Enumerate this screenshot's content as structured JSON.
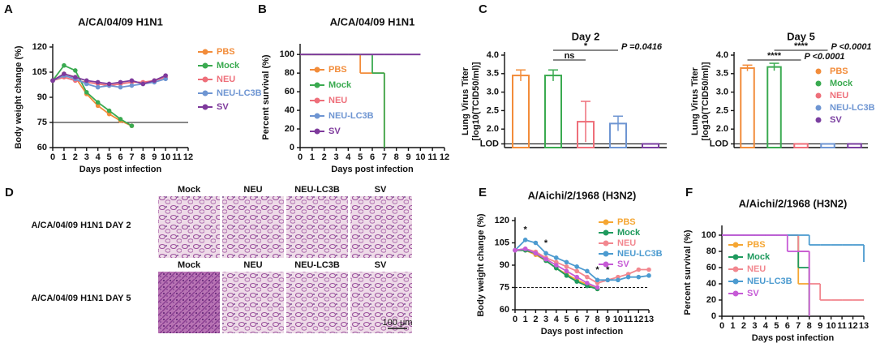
{
  "chart_data": [
    {
      "type": "line",
      "panel": "A",
      "title": "A/CA/04/09 H1N1",
      "xlabel": "Days post infection",
      "ylabel": "Body weight change (%)",
      "x": [
        0,
        1,
        2,
        3,
        4,
        5,
        6,
        7,
        8,
        9,
        10
      ],
      "xlim": [
        0,
        12
      ],
      "xticks": [
        0,
        1,
        2,
        3,
        4,
        5,
        6,
        7,
        8,
        9,
        10,
        11,
        12
      ],
      "ylim": [
        60,
        120
      ],
      "yticks": [
        60,
        75,
        90,
        105,
        120
      ],
      "hline": 75,
      "legend": "right",
      "series": [
        {
          "name": "PBS",
          "color": "#f28c3a",
          "values": [
            100,
            104,
            102,
            92,
            85,
            80,
            76,
            73,
            null,
            null,
            null
          ]
        },
        {
          "name": "Mock",
          "color": "#3aaa50",
          "values": [
            100,
            109,
            106,
            93,
            87,
            82,
            77,
            73,
            null,
            null,
            null
          ]
        },
        {
          "name": "NEU",
          "color": "#ee6f7a",
          "values": [
            100,
            102,
            100,
            99,
            98,
            97,
            98,
            99,
            99,
            100,
            102
          ]
        },
        {
          "name": "NEU-LC3B",
          "color": "#6e95d2",
          "values": [
            100,
            103,
            101,
            98,
            96,
            97,
            96,
            97,
            98,
            99,
            101
          ]
        },
        {
          "name": "SV",
          "color": "#7e3a9c",
          "values": [
            100,
            104,
            102,
            100,
            99,
            98,
            99,
            100,
            98,
            100,
            103
          ]
        }
      ]
    },
    {
      "type": "step",
      "panel": "B",
      "title": "A/CA/04/09 H1N1",
      "xlabel": "Days post infection",
      "ylabel": "Percent survival (%)",
      "x": [
        0,
        1,
        2,
        3,
        4,
        5,
        6,
        7,
        8,
        9,
        10
      ],
      "xlim": [
        0,
        12
      ],
      "xticks": [
        0,
        1,
        2,
        3,
        4,
        5,
        6,
        7,
        8,
        9,
        10,
        11,
        12
      ],
      "ylim": [
        0,
        108
      ],
      "yticks": [
        0,
        20,
        40,
        60,
        80,
        100
      ],
      "legend": "upper left",
      "series": [
        {
          "name": "PBS",
          "color": "#f28c3a",
          "values": [
            100,
            100,
            100,
            100,
            100,
            80,
            80,
            0,
            null,
            null,
            null
          ]
        },
        {
          "name": "Mock",
          "color": "#3aaa50",
          "values": [
            100,
            100,
            100,
            100,
            100,
            100,
            80,
            0,
            null,
            null,
            null
          ]
        },
        {
          "name": "NEU",
          "color": "#ee6f7a",
          "values": [
            100,
            100,
            100,
            100,
            100,
            100,
            100,
            100,
            100,
            100,
            100
          ]
        },
        {
          "name": "NEU-LC3B",
          "color": "#6e95d2",
          "values": [
            100,
            100,
            100,
            100,
            100,
            100,
            100,
            100,
            100,
            100,
            100
          ]
        },
        {
          "name": "SV",
          "color": "#7e3a9c",
          "values": [
            100,
            100,
            100,
            100,
            100,
            100,
            100,
            100,
            100,
            100,
            100
          ]
        }
      ]
    },
    {
      "type": "bar",
      "panel": "C",
      "title": "Day 2",
      "ylabel": [
        "Lung Virus Titer",
        "[log10(TCID50/ml)]"
      ],
      "colors": [
        "#f28c3a",
        "#3aaa50",
        "#ee6f7a",
        "#6e95d2",
        "#7a3fa0"
      ],
      "values": [
        3.45,
        3.45,
        2.2,
        2.15,
        1.6
      ],
      "errors": [
        0.15,
        0.15,
        0.55,
        0.2,
        0
      ],
      "ylim": [
        1.5,
        4.0
      ],
      "yticks": [
        {
          "value": 1.6,
          "label": "LOD"
        },
        {
          "value": 2.0,
          "label": "2.0"
        },
        {
          "value": 2.5,
          "label": "2.5"
        },
        {
          "value": 3.0,
          "label": "3.0"
        },
        {
          "value": 3.5,
          "label": "3.5"
        },
        {
          "value": 4.0,
          "label": "4.0"
        }
      ],
      "annotations": [
        {
          "text": "*",
          "label": "P =0.0416",
          "from": 1,
          "to": 3
        },
        {
          "text": "ns",
          "from": 1,
          "to": 2
        }
      ]
    },
    {
      "type": "bar",
      "title": "Day 5",
      "ylabel": [
        "Lung Virus Titer",
        "[log10(TCID50/ml)]"
      ],
      "categories": [
        "PBS",
        "Mock",
        "NEU",
        "NEU-LC3B",
        "SV"
      ],
      "legend": "upper right",
      "colors": [
        "#f28c3a",
        "#3aaa50",
        "#ee6f7a",
        "#6e95d2",
        "#7a3fa0"
      ],
      "values": [
        3.65,
        3.68,
        1.6,
        1.6,
        1.6
      ],
      "errors": [
        0.08,
        0.1,
        0,
        0,
        0
      ],
      "ylim": [
        1.5,
        4.0
      ],
      "yticks": [
        {
          "value": 1.6,
          "label": "LOD"
        },
        {
          "value": 2.0,
          "label": "2.0"
        },
        {
          "value": 2.5,
          "label": "2.5"
        },
        {
          "value": 3.0,
          "label": "3.0"
        },
        {
          "value": 3.5,
          "label": "3.5"
        },
        {
          "value": 4.0,
          "label": "4.0"
        }
      ],
      "annotations": [
        {
          "text": "****",
          "label": "P <0.0001",
          "from": 1,
          "to": 3
        },
        {
          "text": "****",
          "label": "P <0.0001",
          "from": 0,
          "to": 2
        }
      ]
    },
    {
      "type": "line",
      "panel": "E",
      "title": "A/Aichi/2/1968 (H3N2)",
      "xlabel": "Days post infection",
      "ylabel": "Body weight change (%)",
      "x": [
        0,
        1,
        2,
        3,
        4,
        5,
        6,
        7,
        8,
        9,
        10,
        11,
        12,
        13
      ],
      "xlim": [
        0,
        13
      ],
      "xticks": [
        0,
        1,
        2,
        3,
        4,
        5,
        6,
        7,
        8,
        9,
        10,
        11,
        12,
        13
      ],
      "ylim": [
        60,
        120
      ],
      "yticks": [
        60,
        75,
        90,
        105,
        120
      ],
      "hline": 75,
      "hline_style": "dashed",
      "legend": "upper right",
      "annotations": [
        {
          "text": "*",
          "x": 1
        },
        {
          "text": "*",
          "x": 3
        },
        {
          "text": "*",
          "x": 8
        },
        {
          "text": "*",
          "x": 9
        }
      ],
      "series": [
        {
          "name": "PBS",
          "color": "#f5a633",
          "values": [
            100,
            100,
            97,
            93,
            88,
            84,
            80,
            77,
            74,
            null,
            null,
            null,
            null,
            null
          ]
        },
        {
          "name": "Mock",
          "color": "#1f9a5e",
          "values": [
            100,
            100,
            98,
            93,
            88,
            83,
            79,
            76,
            74,
            null,
            null,
            null,
            null,
            null
          ]
        },
        {
          "name": "NEU",
          "color": "#f2878f",
          "values": [
            100,
            101,
            99,
            95,
            92,
            89,
            86,
            82,
            78,
            80,
            82,
            84,
            87,
            87
          ]
        },
        {
          "name": "NEU-LC3B",
          "color": "#4c9bd0",
          "values": [
            100,
            107,
            105,
            98,
            95,
            92,
            89,
            86,
            80,
            80,
            80,
            82,
            82,
            83
          ]
        },
        {
          "name": "SV",
          "color": "#c65ad6",
          "values": [
            100,
            101,
            98,
            94,
            90,
            86,
            82,
            78,
            75,
            null,
            null,
            null,
            null,
            null
          ]
        }
      ]
    },
    {
      "type": "step",
      "panel": "F",
      "title": "A/Aichi/2/1968 (H3N2)",
      "xlabel": "Days post infection",
      "ylabel": "Percent survival (%)",
      "x": [
        0,
        1,
        2,
        3,
        4,
        5,
        6,
        7,
        8,
        9,
        10,
        11,
        12,
        13
      ],
      "xlim": [
        0,
        13
      ],
      "xticks": [
        0,
        1,
        2,
        3,
        4,
        5,
        6,
        7,
        8,
        9,
        10,
        11,
        12,
        13
      ],
      "ylim": [
        0,
        108
      ],
      "yticks": [
        0,
        20,
        40,
        60,
        80,
        100
      ],
      "legend": "lower left",
      "series": [
        {
          "name": "PBS",
          "color": "#f5a633",
          "values": [
            100,
            100,
            100,
            100,
            100,
            100,
            100,
            40,
            0,
            null,
            null,
            null,
            null,
            null
          ]
        },
        {
          "name": "Mock",
          "color": "#1f9a5e",
          "values": [
            100,
            100,
            100,
            100,
            100,
            100,
            100,
            60,
            0,
            null,
            null,
            null,
            null,
            null
          ]
        },
        {
          "name": "NEU",
          "color": "#f2878f",
          "values": [
            100,
            100,
            100,
            100,
            100,
            100,
            100,
            80,
            40,
            20,
            20,
            20,
            20,
            20
          ]
        },
        {
          "name": "NEU-LC3B",
          "color": "#4c9bd0",
          "values": [
            100,
            100,
            100,
            100,
            100,
            100,
            100,
            100,
            88,
            88,
            88,
            88,
            88,
            67
          ]
        },
        {
          "name": "SV",
          "color": "#c65ad6",
          "values": [
            100,
            100,
            100,
            100,
            100,
            100,
            80,
            80,
            0,
            null,
            null,
            null,
            null,
            null
          ]
        }
      ]
    }
  ],
  "histology": {
    "panel": "D",
    "scale_bar": "100 μm",
    "rows": [
      {
        "title": "A/CA/04/09 H1N1 DAY 2",
        "columns": [
          "Mock",
          "NEU",
          "NEU-LC3B",
          "SV"
        ]
      },
      {
        "title": "A/CA/04/09 H1N1 DAY 5",
        "columns": [
          "Mock",
          "NEU",
          "NEU-LC3B",
          "SV"
        ]
      }
    ]
  }
}
